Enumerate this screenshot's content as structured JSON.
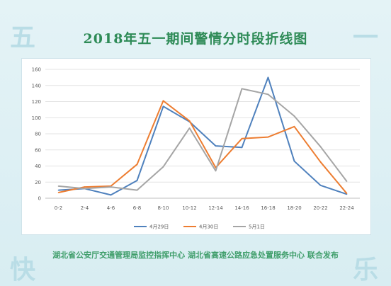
{
  "title": "2018年五一期间警情分时段折线图",
  "corner_chars": [
    "五",
    "一",
    "快",
    "乐"
  ],
  "footer": "湖北省公安厅交通管理局监控指挥中心 湖北省高速公路应急处置服务中心 联合发布",
  "chart_data": {
    "type": "line",
    "title": "",
    "xlabel": "",
    "ylabel": "",
    "categories": [
      "0-2",
      "2-4",
      "4-6",
      "6-8",
      "8-10",
      "10-12",
      "12-14",
      "14-16",
      "16-18",
      "18-20",
      "20-22",
      "22-24"
    ],
    "ylim": [
      0,
      160
    ],
    "yticks": [
      0,
      20,
      40,
      60,
      80,
      100,
      120,
      140,
      160
    ],
    "grid": true,
    "legend_position": "bottom",
    "series": [
      {
        "name": "4月29日",
        "color": "#4f81bd",
        "values": [
          10,
          12,
          4,
          22,
          114,
          95,
          65,
          63,
          150,
          46,
          16,
          5
        ]
      },
      {
        "name": "4月30日",
        "color": "#ed7d31",
        "values": [
          7,
          14,
          15,
          42,
          121,
          96,
          38,
          74,
          76,
          89,
          45,
          6
        ]
      },
      {
        "name": "5月1日",
        "color": "#a5a5a5",
        "values": [
          15,
          12,
          14,
          10,
          39,
          87,
          34,
          136,
          129,
          102,
          64,
          21
        ]
      }
    ]
  }
}
